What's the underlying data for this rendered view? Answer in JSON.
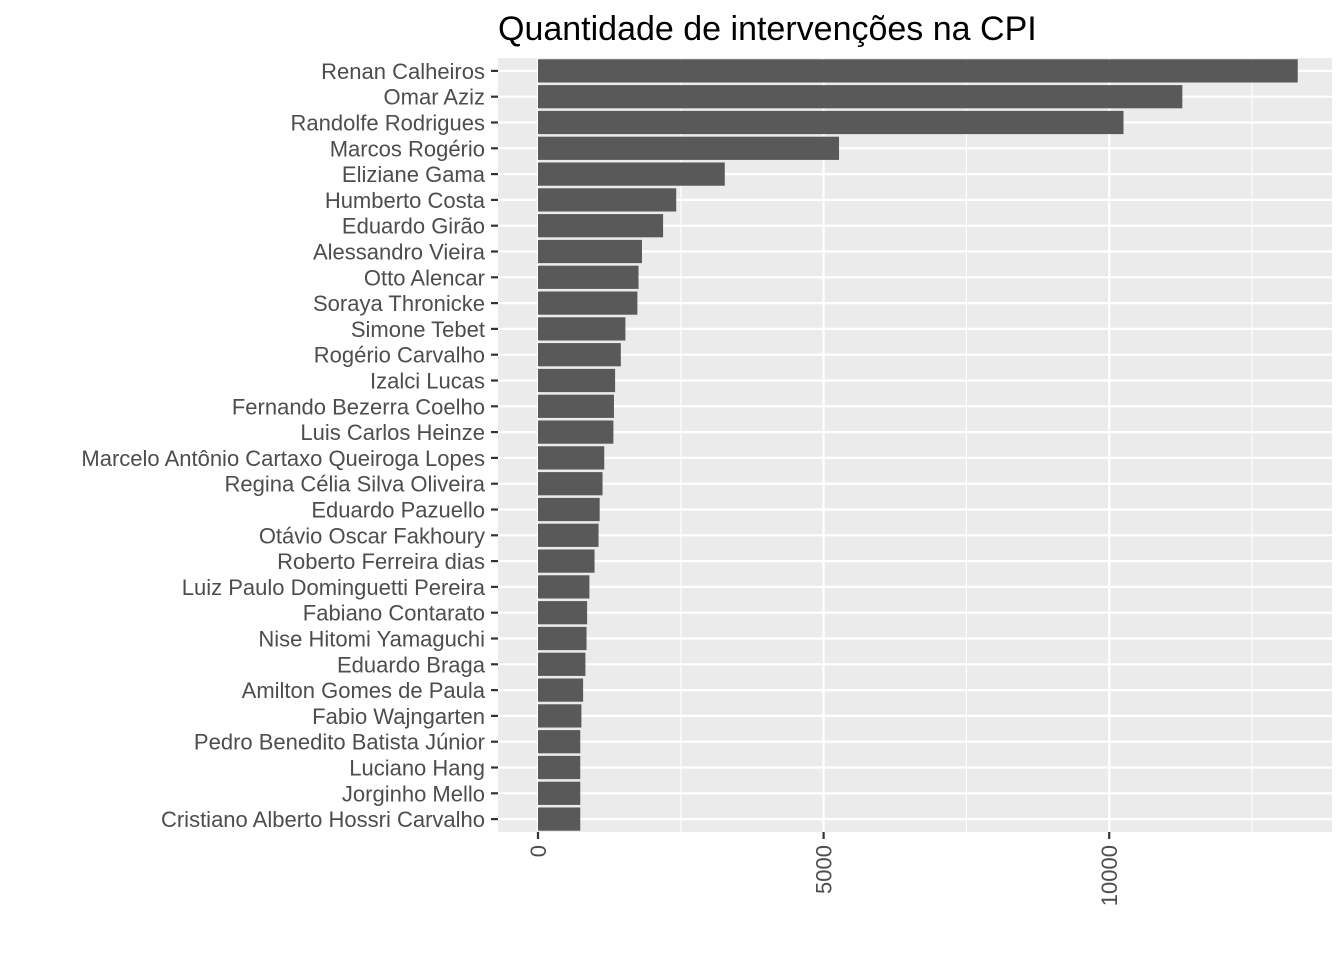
{
  "chart_data": {
    "type": "bar",
    "orientation": "horizontal",
    "title": "Quantidade de intervenções na CPI",
    "xlabel": "",
    "ylabel": "",
    "xlim": [
      -700,
      13900
    ],
    "x_ticks": [
      0,
      5000,
      10000
    ],
    "grid": true,
    "legend": "none",
    "colors": {
      "bar": "#595959",
      "panel": "#ebebeb",
      "grid": "#ffffff"
    },
    "categories": [
      "Renan Calheiros",
      "Omar Aziz",
      "Randolfe Rodrigues",
      "Marcos Rogério",
      "Eliziane Gama",
      "Humberto Costa",
      "Eduardo Girão",
      "Alessandro Vieira",
      "Otto Alencar",
      "Soraya Thronicke",
      "Simone Tebet",
      "Rogério Carvalho",
      "Izalci Lucas",
      "Fernando Bezerra Coelho",
      "Luis Carlos Heinze",
      "Marcelo Antônio Cartaxo Queiroga Lopes",
      "Regina Célia Silva Oliveira",
      "Eduardo Pazuello",
      "Otávio Oscar Fakhoury",
      "Roberto Ferreira dias",
      "Luiz Paulo Dominguetti Pereira",
      "Fabiano Contarato",
      "Nise Hitomi Yamaguchi",
      "Eduardo Braga",
      "Amilton Gomes de Paula",
      "Fabio Wajngarten",
      "Pedro Benedito Batista Júnior",
      "Luciano Hang",
      "Jorginho Mello",
      "Cristiano Alberto Hossri Carvalho"
    ],
    "values": [
      13300,
      11280,
      10250,
      5270,
      3270,
      2420,
      2190,
      1820,
      1760,
      1740,
      1530,
      1450,
      1350,
      1330,
      1320,
      1160,
      1130,
      1080,
      1060,
      990,
      900,
      860,
      850,
      830,
      790,
      760,
      740,
      740,
      740,
      740
    ]
  }
}
